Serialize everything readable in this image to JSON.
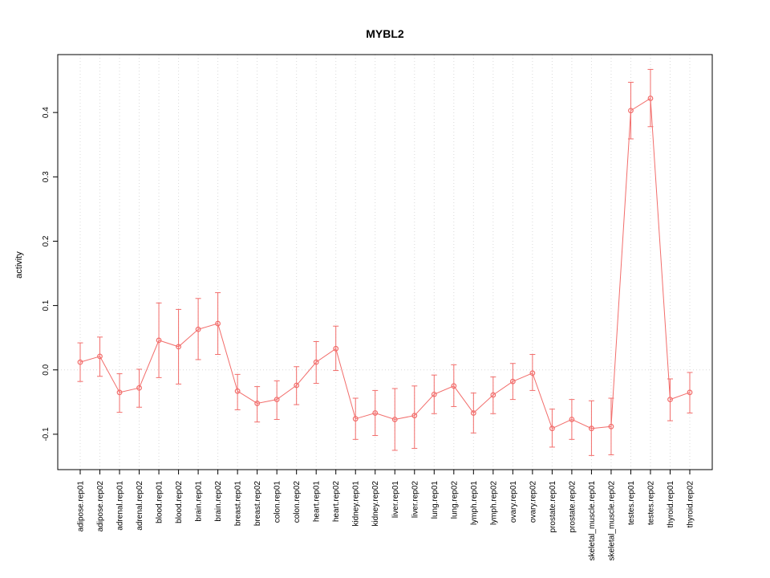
{
  "chart_data": {
    "type": "line",
    "title": "MYBL2",
    "xlabel": "",
    "ylabel": "activity",
    "ylim": [
      -0.155,
      0.49
    ],
    "yticks": [
      -0.1,
      0.0,
      0.1,
      0.2,
      0.3,
      0.4
    ],
    "grid": "dotted vertical line at each category; dotted horizontal line at y=0",
    "legend": "none",
    "series_color": "#f26d6b",
    "grid_color": "#d9d9d9",
    "box_color": "#000000",
    "point_style": "open-circle with error bars",
    "categories": [
      "adipose.rep01",
      "adipose.rep02",
      "adrenal.rep01",
      "adrenal.rep02",
      "blood.rep01",
      "blood.rep02",
      "brain.rep01",
      "brain.rep02",
      "breast.rep01",
      "breast.rep02",
      "colon.rep01",
      "colon.rep02",
      "heart.rep01",
      "heart.rep02",
      "kidney.rep01",
      "kidney.rep02",
      "liver.rep01",
      "liver.rep02",
      "lung.rep01",
      "lung.rep02",
      "lymph.rep01",
      "lymph.rep02",
      "ovary.rep01",
      "ovary.rep02",
      "prostate.rep01",
      "prostate.rep02",
      "skeletal_muscle.rep01",
      "skeletal_muscle.rep02",
      "testes.rep01",
      "testes.rep02",
      "thyroid.rep01",
      "thyroid.rep02"
    ],
    "values": [
      0.012,
      0.021,
      -0.035,
      -0.028,
      0.046,
      0.036,
      0.063,
      0.072,
      -0.033,
      -0.052,
      -0.046,
      -0.024,
      0.012,
      0.033,
      -0.076,
      -0.067,
      -0.077,
      -0.071,
      -0.038,
      -0.025,
      -0.067,
      -0.039,
      -0.018,
      -0.005,
      -0.091,
      -0.077,
      -0.091,
      -0.088,
      0.403,
      0.422,
      -0.046,
      -0.035
    ],
    "ci_low": [
      -0.018,
      -0.01,
      -0.066,
      -0.058,
      -0.012,
      -0.022,
      0.016,
      0.024,
      -0.062,
      -0.081,
      -0.077,
      -0.054,
      -0.021,
      -0.001,
      -0.108,
      -0.102,
      -0.125,
      -0.122,
      -0.068,
      -0.057,
      -0.098,
      -0.068,
      -0.046,
      -0.032,
      -0.12,
      -0.108,
      -0.133,
      -0.132,
      0.359,
      0.378,
      -0.079,
      -0.067
    ],
    "ci_high": [
      0.042,
      0.051,
      -0.006,
      0.001,
      0.104,
      0.094,
      0.111,
      0.12,
      -0.007,
      -0.026,
      -0.017,
      0.005,
      0.044,
      0.068,
      -0.044,
      -0.032,
      -0.029,
      -0.025,
      -0.008,
      0.008,
      -0.036,
      -0.011,
      0.01,
      0.024,
      -0.061,
      -0.046,
      -0.048,
      -0.044,
      0.447,
      0.467,
      -0.014,
      -0.004
    ]
  }
}
